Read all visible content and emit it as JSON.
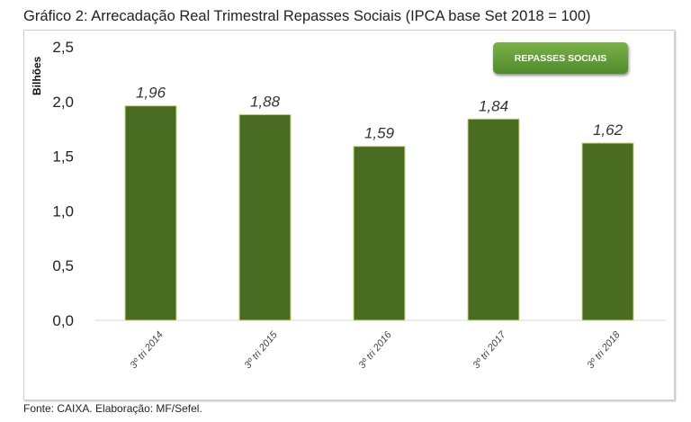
{
  "title": "Gráfico 2: Arrecadação Real Trimestral Repasses Sociais (IPCA base Set 2018 = 100)",
  "footer": "Fonte: CAIXA. Elaboração: MF/Sefel.",
  "chart_data": {
    "type": "bar",
    "title": "Gráfico 2: Arrecadação Real Trimestral Repasses Sociais (IPCA base Set 2018 = 100)",
    "xlabel": "",
    "ylabel": "Bilhões",
    "ylim": [
      0,
      2.5
    ],
    "yticks": [
      "0,0",
      "0,5",
      "1,0",
      "1,5",
      "2,0",
      "2,5"
    ],
    "categories": [
      "3º tri 2014",
      "3º tri 2015",
      "3º tri 2016",
      "3º tri 2017",
      "3º tri 2018"
    ],
    "series": [
      {
        "name": "REPASSES SOCIAIS",
        "values": [
          1.96,
          1.88,
          1.59,
          1.84,
          1.62
        ],
        "labels": [
          "1,96",
          "1,88",
          "1,59",
          "1,84",
          "1,62"
        ],
        "color": "#4a6b22"
      }
    ],
    "legend": "top-right",
    "grid": false
  }
}
